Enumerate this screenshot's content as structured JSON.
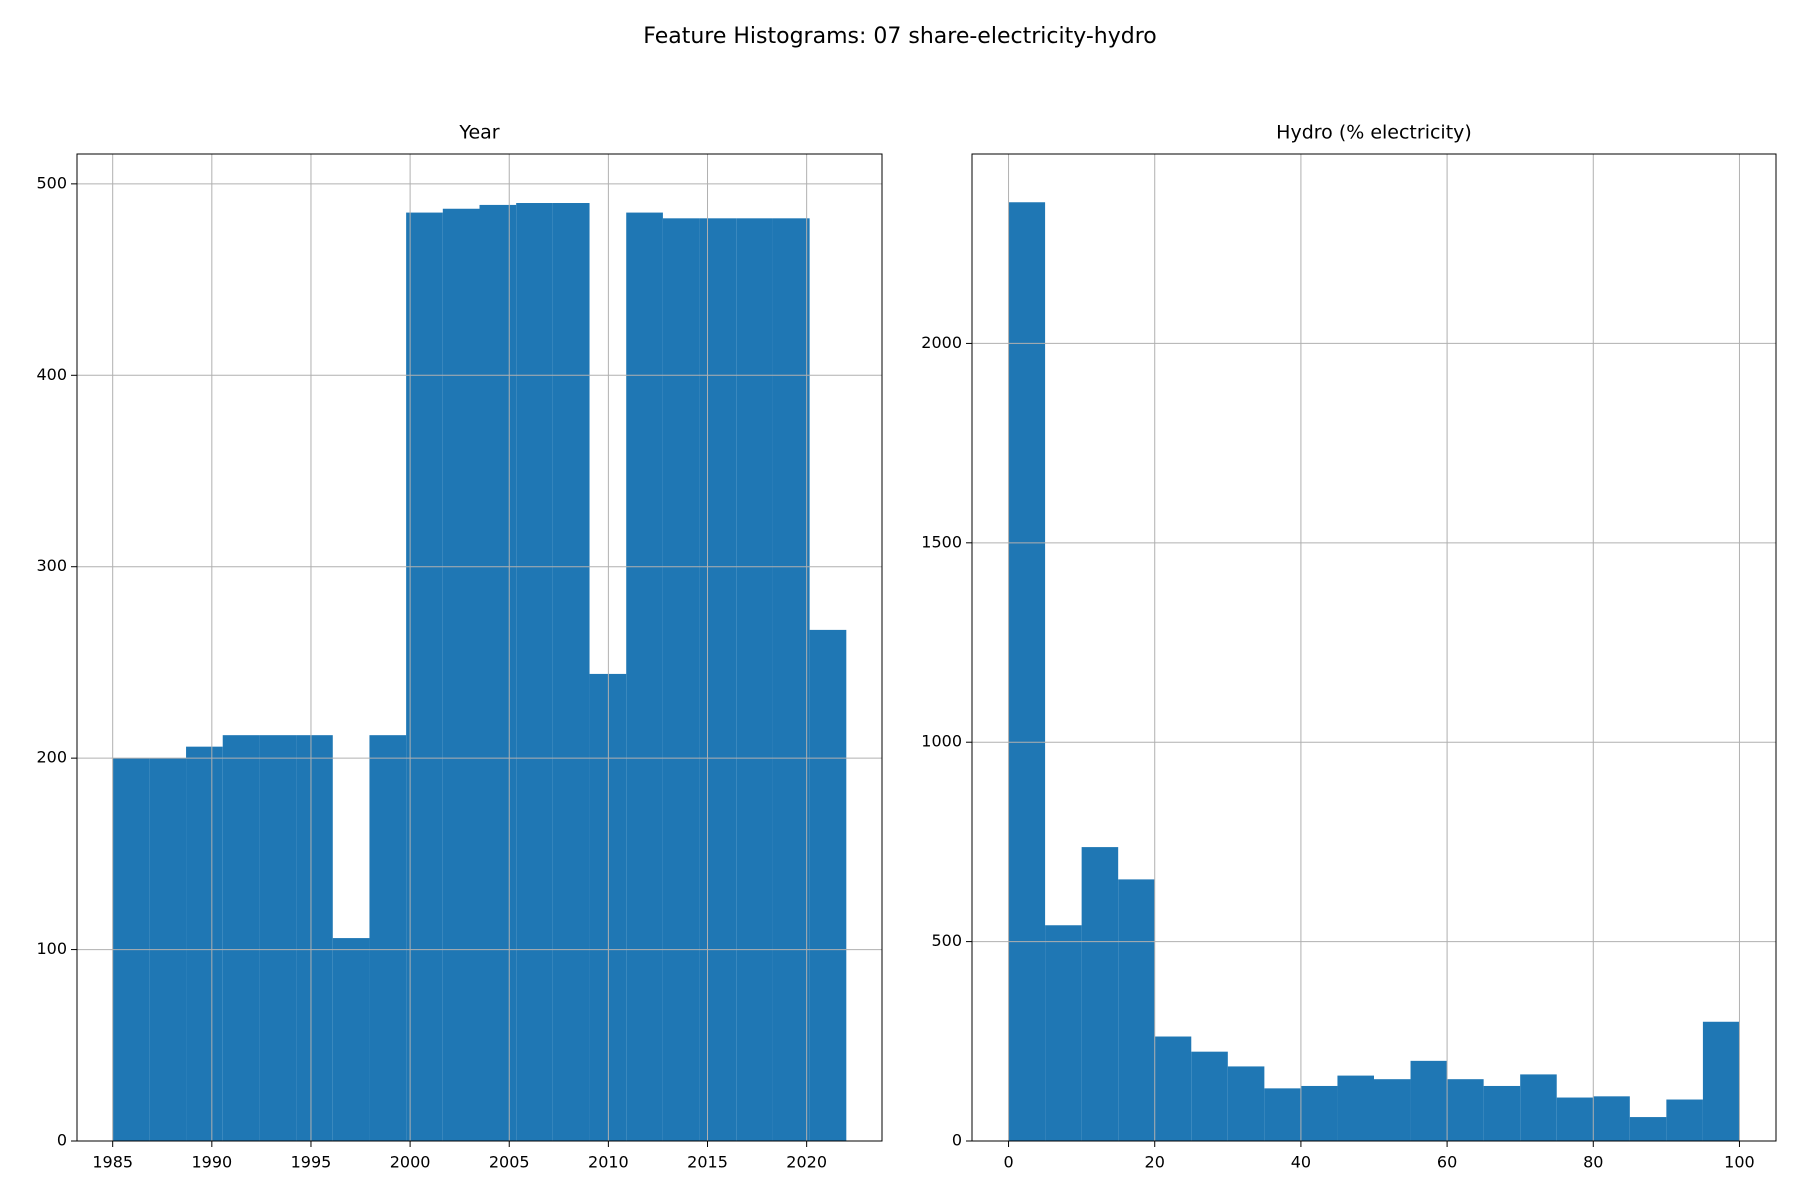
{
  "title": "Feature Histograms: 07 share-electricity-hydro",
  "chart_data": [
    {
      "type": "histogram",
      "title": "Year",
      "color": "#1f77b4",
      "grid": true,
      "bins": [
        1985,
        1986.85,
        1988.7,
        1990.55,
        1992.4,
        1994.25,
        1996.1,
        1997.95,
        1999.8,
        2001.65,
        2003.5,
        2005.35,
        2007.2,
        2009.05,
        2010.9,
        2012.75,
        2014.6,
        2016.45,
        2018.3,
        2020.15,
        2022
      ],
      "values": [
        200,
        200,
        206,
        212,
        212,
        212,
        106,
        212,
        485,
        487,
        489,
        490,
        490,
        244,
        485,
        482,
        482,
        482,
        482,
        267
      ],
      "xlim": [
        1983.2,
        2023.8
      ],
      "xticks": [
        1985,
        1990,
        1995,
        2000,
        2005,
        2010,
        2015,
        2020
      ],
      "ylim": [
        0,
        515.6
      ],
      "yticks": [
        0,
        100,
        200,
        300,
        400,
        500
      ]
    },
    {
      "type": "histogram",
      "title": "Hydro (% electricity)",
      "color": "#1f77b4",
      "grid": true,
      "bins": [
        0,
        5,
        10,
        15,
        20,
        25,
        30,
        35,
        40,
        45,
        50,
        55,
        60,
        65,
        70,
        75,
        80,
        85,
        90,
        95,
        100
      ],
      "values": [
        2354,
        541,
        737,
        656,
        262,
        224,
        187,
        132,
        138,
        164,
        155,
        201,
        155,
        138,
        167,
        109,
        112,
        60,
        104,
        299
      ],
      "xlim": [
        -5,
        105
      ],
      "xticks": [
        0,
        20,
        40,
        60,
        80,
        100
      ],
      "ylim": [
        0,
        2475
      ],
      "yticks": [
        0,
        500,
        1000,
        1500,
        2000
      ]
    }
  ]
}
